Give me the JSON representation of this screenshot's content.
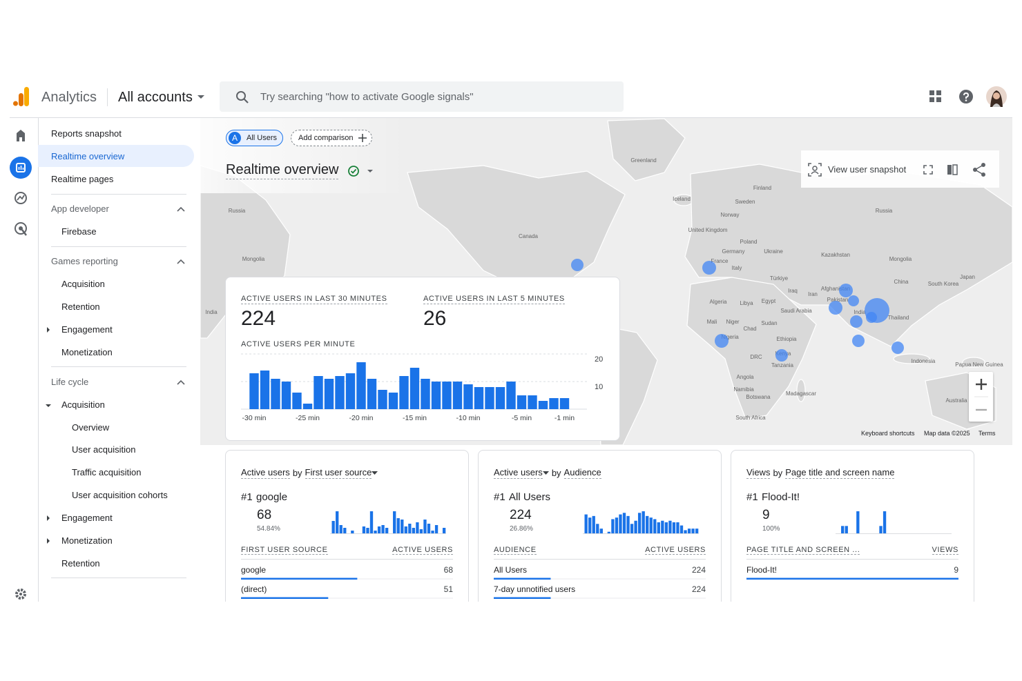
{
  "header": {
    "product": "Analytics",
    "account": "All accounts",
    "search_placeholder": "Try searching \"how to activate Google signals\""
  },
  "nav": {
    "items": [
      "Reports snapshot",
      "Realtime overview",
      "Realtime pages",
      "App developer",
      "Firebase",
      "Games reporting",
      "Acquisition",
      "Retention",
      "Engagement",
      "Monetization",
      "Life cycle",
      "Acquisition",
      "Overview",
      "User acquisition",
      "Traffic acquisition",
      "User acquisition cohorts",
      "Engagement",
      "Monetization",
      "Retention"
    ]
  },
  "comparison": {
    "segment_letter": "A",
    "segment": "All Users",
    "add": "Add comparison"
  },
  "page_title": "Realtime overview",
  "map": {
    "toolbar": "View user snapshot",
    "labels": [
      "Russia",
      "Mongolia",
      "India",
      "Greenland",
      "Canada",
      "Iceland",
      "Finland",
      "Sweden",
      "Norway",
      "United Kingdom",
      "Poland",
      "Germany",
      "Ukraine",
      "France",
      "Italy",
      "Russia",
      "Kazakhstan",
      "Mongolia",
      "Türkiye",
      "China",
      "South Korea",
      "Japan",
      "Iraq",
      "Iran",
      "Afghanistan",
      "Pakistan",
      "Algeria",
      "Libya",
      "Egypt",
      "Saudi Arabia",
      "India",
      "Thailand",
      "Mali",
      "Niger",
      "Chad",
      "Sudan",
      "Ethiopia",
      "Nigeria",
      "Kenya",
      "DRC",
      "Tanzania",
      "Indonesia",
      "Papua New Guinea",
      "Angola",
      "Namibia",
      "Botswana",
      "Madagascar",
      "Australia",
      "South Africa"
    ],
    "footer": [
      "Keyboard shortcuts",
      "Map data ©2025",
      "Terms"
    ]
  },
  "chart_data": {
    "type": "bar",
    "kpis": [
      {
        "label": "ACTIVE USERS IN LAST 30 MINUTES",
        "value": 224
      },
      {
        "label": "ACTIVE USERS IN LAST 5 MINUTES",
        "value": 26
      }
    ],
    "title": "ACTIVE USERS PER MINUTE",
    "categories": [
      "-30 min",
      null,
      null,
      null,
      null,
      "-25 min",
      null,
      null,
      null,
      null,
      "-20 min",
      null,
      null,
      null,
      null,
      "-15 min",
      null,
      null,
      null,
      null,
      "-10 min",
      null,
      null,
      null,
      null,
      "-5 min",
      null,
      null,
      null,
      "-1 min"
    ],
    "values": [
      13,
      14,
      11,
      10,
      6,
      2,
      12,
      11,
      12,
      13,
      17,
      11,
      7,
      6,
      12,
      15,
      11,
      10,
      10,
      10,
      9,
      8,
      8,
      8,
      10,
      5,
      5,
      3,
      4,
      4
    ],
    "color": "#1a73e8",
    "ylim": [
      0,
      20
    ],
    "yticks": [
      10,
      20
    ],
    "grid": true
  },
  "cards": [
    {
      "title": {
        "metric": "Active users",
        "by": "by",
        "dimension": "First user source"
      },
      "dropdown": "dimension",
      "rank": "#1",
      "top_name": "google",
      "top_value": 68,
      "top_percent": {
        "value": 54.84,
        "label": "54.84%"
      },
      "mini_chart": [
        18,
        32,
        12,
        8,
        0,
        4,
        0,
        0,
        10,
        8,
        32,
        4,
        10,
        12,
        8,
        0,
        32,
        22,
        20,
        10,
        14,
        8,
        16,
        6,
        20,
        14,
        4,
        12,
        0,
        8
      ],
      "columns": [
        "FIRST USER SOURCE",
        "ACTIVE USERS"
      ],
      "rows": [
        {
          "name": "google",
          "value": 68
        },
        {
          "name": "(direct)",
          "value": 51
        }
      ]
    },
    {
      "title": {
        "metric": "Active users",
        "by": "by",
        "dimension": "Audience"
      },
      "dropdown": "metric",
      "rank": "#1",
      "top_name": "All Users",
      "top_value": 224,
      "top_percent": {
        "value": 26.86,
        "label": "26.86%"
      },
      "mini_chart": [
        24,
        20,
        22,
        12,
        6,
        0,
        2,
        18,
        20,
        24,
        26,
        22,
        12,
        16,
        26,
        28,
        22,
        20,
        18,
        14,
        16,
        14,
        16,
        14,
        14,
        10,
        4,
        6,
        6,
        6
      ],
      "columns": [
        "AUDIENCE",
        "ACTIVE USERS"
      ],
      "rows": [
        {
          "name": "All Users",
          "value": 224
        },
        {
          "name": "7-day unnotified users",
          "value": 224
        }
      ]
    },
    {
      "title": {
        "metric": "Views",
        "by": "by",
        "dimension": "Page title and screen name"
      },
      "rank": "#1",
      "top_name": "Flood-It!",
      "top_value": 9,
      "top_percent": {
        "value": 100,
        "label": "100%"
      },
      "mini_chart": [
        0,
        3,
        3,
        0,
        0,
        9,
        0,
        0,
        0,
        0,
        0,
        3,
        9,
        0,
        0,
        0,
        0,
        0,
        0,
        0,
        0,
        0,
        0,
        0,
        0,
        0,
        0,
        0,
        0,
        0
      ],
      "columns": [
        "PAGE TITLE AND SCREEN ...",
        "VIEWS"
      ],
      "rows": [
        {
          "name": "Flood-It!",
          "value": 9
        }
      ]
    }
  ]
}
